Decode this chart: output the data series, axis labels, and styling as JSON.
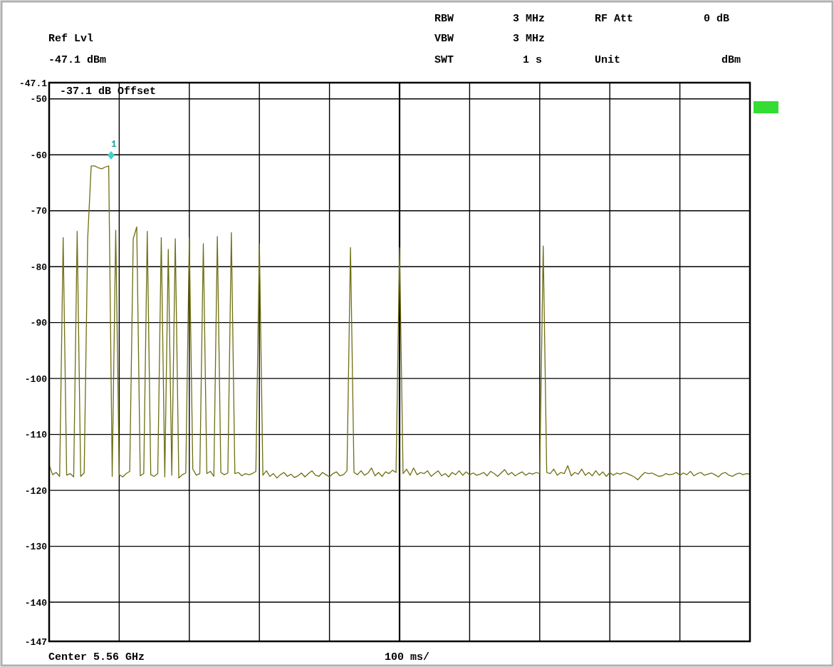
{
  "chart_data": {
    "type": "line",
    "grid": true,
    "tick_labels": "y",
    "categories": [
      null,
      null,
      null,
      null,
      null,
      null,
      null,
      null,
      null,
      null,
      null,
      null,
      null,
      null,
      null,
      null,
      null,
      null,
      null,
      null,
      null,
      null,
      null,
      null,
      null,
      null,
      null,
      null,
      null,
      null,
      null,
      null,
      null,
      null,
      null,
      null,
      null,
      null,
      null,
      null,
      null,
      null,
      null,
      null,
      null,
      null,
      null,
      null,
      null,
      null,
      null,
      null,
      null,
      null,
      null,
      null,
      null,
      null,
      null,
      null,
      null,
      null,
      null,
      null,
      null,
      null,
      null,
      null,
      null,
      null,
      null,
      null,
      null,
      null,
      null,
      null,
      null,
      null,
      null,
      null,
      null,
      null,
      null,
      null,
      null,
      null,
      null,
      null,
      null,
      null,
      null,
      null,
      null,
      null,
      null,
      null,
      null,
      null,
      null,
      null,
      null,
      null,
      null,
      null,
      null,
      null,
      null,
      null,
      null,
      null,
      null,
      null,
      null,
      null,
      null,
      null,
      null,
      null,
      null,
      null,
      null,
      null,
      null,
      null,
      null,
      null,
      null,
      null,
      null,
      null,
      null,
      null,
      null,
      null,
      null,
      null,
      null,
      null,
      null,
      null,
      null,
      null,
      null,
      null,
      null,
      null,
      null,
      null,
      null,
      null,
      null,
      null,
      null,
      null,
      null,
      null,
      null,
      null,
      null,
      null,
      null,
      null,
      null,
      null,
      null,
      null,
      null,
      null,
      null,
      null,
      null,
      null,
      null,
      null,
      null,
      null,
      null,
      null,
      null,
      null,
      null,
      null,
      null,
      null,
      null,
      null,
      null,
      null,
      null,
      null,
      null,
      null,
      null,
      null,
      null,
      null,
      null,
      null,
      null,
      null,
      null
    ],
    "ylim": [
      -147,
      -47.1
    ],
    "yticks": [
      -47.1,
      -50,
      -60,
      -70,
      -80,
      -90,
      -100,
      -110,
      -120,
      -130,
      -140,
      -147
    ],
    "annotations": [
      "Ref Lvl",
      "-47.1 dBm",
      "RBW",
      "3 MHz",
      "VBW",
      "3 MHz",
      "SWT",
      "1 s",
      "RF Att",
      "0 dB",
      "Unit",
      "dBm",
      "-37.1 dB Offset",
      "Center 5.56 GHz",
      "100 ms/",
      "1"
    ],
    "series": [
      {
        "color": "#6e6e12",
        "values": [
          -115.5,
          -117.2,
          -116.8,
          -117.5,
          -74.8,
          -117.3,
          -117.0,
          -117.6,
          -73.7,
          -117.5,
          -116.9,
          -75.0,
          -62.0,
          -62.0,
          -62.3,
          -62.5,
          -62.2,
          -62.0,
          -117.5,
          -73.5,
          -117.2,
          -117.6,
          -117.0,
          -116.6,
          -75.0,
          -72.9,
          -117.4,
          -117.0,
          -73.7,
          -117.2,
          -117.5,
          -117.0,
          -74.8,
          -117.6,
          -76.9,
          -117.3,
          -75.0,
          -117.8,
          -117.2,
          -116.9,
          -74.8,
          -116.2,
          -117.3,
          -117.0,
          -75.9,
          -117.0,
          -116.6,
          -117.5,
          -74.6,
          -116.8,
          -117.2,
          -116.9,
          -73.9,
          -117.0,
          -116.8,
          -117.4,
          -117.0,
          -117.2,
          -117.0,
          -116.6,
          -75.9,
          -117.3,
          -116.5,
          -117.5,
          -117.0,
          -117.8,
          -117.2,
          -116.8,
          -117.5,
          -117.1,
          -117.7,
          -117.4,
          -116.9,
          -117.6,
          -117.0,
          -116.5,
          -117.3,
          -117.5,
          -116.8,
          -117.2,
          -117.6,
          -117.0,
          -116.7,
          -117.4,
          -117.2,
          -116.5,
          -76.6,
          -116.8,
          -117.2,
          -116.5,
          -117.3,
          -116.9,
          -116.0,
          -117.4,
          -116.8,
          -117.5,
          -116.7,
          -117.0,
          -116.4,
          -116.8,
          -76.6,
          -117.0,
          -116.2,
          -117.3,
          -116.0,
          -117.2,
          -116.8,
          -117.0,
          -116.5,
          -117.5,
          -117.0,
          -116.5,
          -117.4,
          -117.0,
          -117.6,
          -116.8,
          -117.2,
          -116.5,
          -117.3,
          -116.7,
          -117.2,
          -116.9,
          -117.3,
          -117.1,
          -116.8,
          -117.4,
          -116.6,
          -117.0,
          -117.5,
          -116.9,
          -116.3,
          -117.2,
          -116.8,
          -117.4,
          -117.0,
          -116.7,
          -117.3,
          -116.9,
          -117.1,
          -116.8,
          -117.0,
          -76.3,
          -116.8,
          -117.0,
          -116.2,
          -117.3,
          -116.8,
          -117.0,
          -115.6,
          -117.4,
          -116.8,
          -117.1,
          -116.2,
          -117.3,
          -116.8,
          -117.4,
          -116.5,
          -117.3,
          -116.7,
          -117.5,
          -116.8,
          -117.3,
          -116.9,
          -117.1,
          -116.8,
          -117.0,
          -117.3,
          -117.6,
          -118.1,
          -117.4,
          -116.8,
          -117.0,
          -116.9,
          -117.2,
          -117.5,
          -117.4,
          -117.0,
          -117.2,
          -117.1,
          -116.8,
          -117.3,
          -116.9,
          -117.2,
          -116.6,
          -117.4,
          -117.0,
          -116.8,
          -117.3,
          -117.1,
          -116.9,
          -117.2,
          -117.6,
          -117.0,
          -116.8,
          -117.3,
          -117.5,
          -117.1,
          -116.9,
          -117.2,
          -117.0,
          -117.1
        ]
      }
    ]
  }
}
